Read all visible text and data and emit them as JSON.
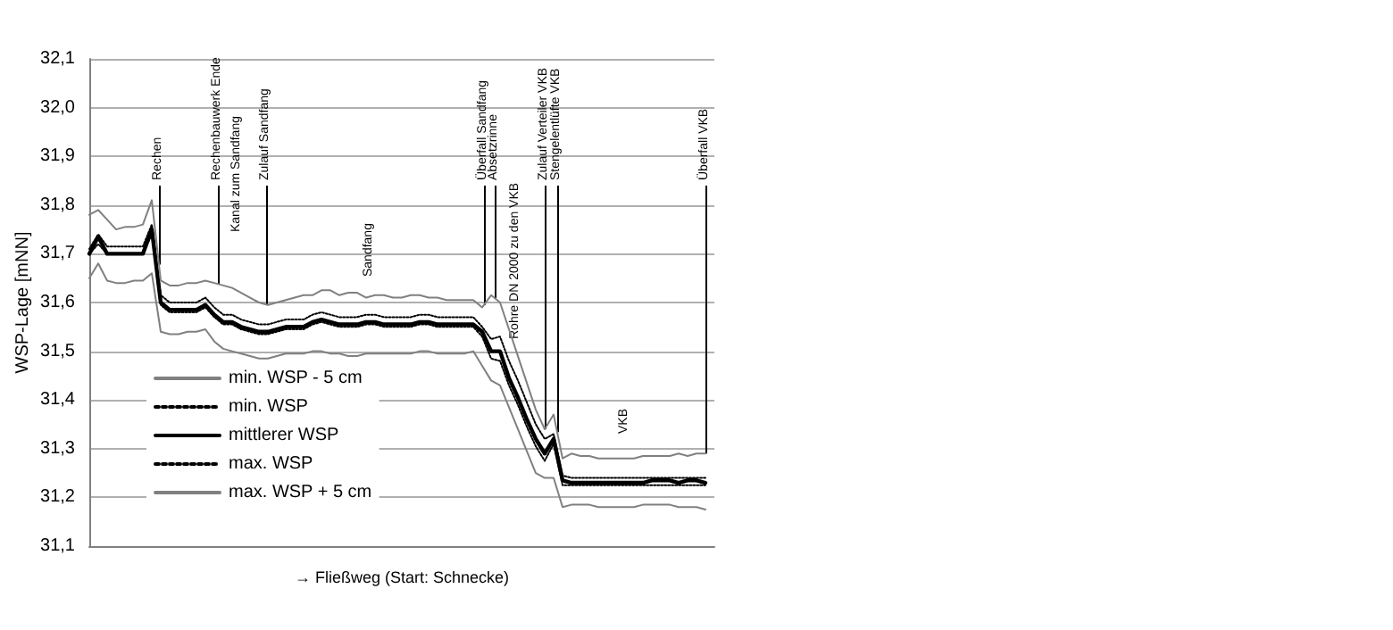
{
  "chart_data": {
    "type": "line",
    "ylabel": "WSP-Lage [mNN]",
    "xlabel": "→ Fließweg (Start: Schnecke)",
    "categories": [
      null,
      null,
      null,
      null,
      null,
      null,
      null,
      null,
      null,
      null,
      null,
      null,
      null,
      null,
      null,
      null,
      null,
      null,
      null,
      null,
      null,
      null,
      null,
      null,
      null,
      null,
      null,
      null,
      null,
      null,
      null,
      null,
      null,
      null,
      null,
      null,
      null,
      null,
      null,
      null,
      null,
      null,
      null,
      null,
      null,
      null,
      null,
      null,
      null,
      null,
      null,
      null,
      null,
      null,
      null,
      null,
      null,
      null,
      null,
      null,
      null,
      null,
      null,
      null,
      null,
      null,
      null,
      null,
      null,
      null,
      null
    ],
    "ylim": [
      31.1,
      32.1
    ],
    "yticks": [
      {
        "value": 31.1,
        "label": "31,1"
      },
      {
        "value": 31.2,
        "label": "31,2"
      },
      {
        "value": 31.3,
        "label": "31,3"
      },
      {
        "value": 31.4,
        "label": "31,4"
      },
      {
        "value": 31.5,
        "label": "31,5"
      },
      {
        "value": 31.6,
        "label": "31,6"
      },
      {
        "value": 31.7,
        "label": "31,7"
      },
      {
        "value": 31.8,
        "label": "31,8"
      },
      {
        "value": 31.9,
        "label": "31,9"
      },
      {
        "value": 32.0,
        "label": "32,0"
      },
      {
        "value": 32.1,
        "label": "32,1"
      }
    ],
    "grid": "y",
    "legend": "bottom left",
    "marker": "none",
    "series": [
      {
        "name": "min. WSP - 5 cm",
        "color": "#808080",
        "line_style": "solid",
        "values": [
          31.65,
          31.68,
          31.645,
          31.64,
          31.64,
          31.645,
          31.645,
          31.66,
          31.54,
          31.535,
          31.535,
          31.54,
          31.54,
          31.545,
          31.52,
          31.505,
          31.5,
          31.495,
          31.49,
          31.485,
          31.485,
          31.49,
          31.495,
          31.495,
          31.495,
          31.5,
          31.5,
          31.495,
          31.495,
          31.49,
          31.49,
          31.495,
          31.495,
          31.495,
          31.495,
          31.495,
          31.495,
          31.5,
          31.5,
          31.495,
          31.495,
          31.495,
          31.495,
          31.5,
          31.47,
          31.44,
          31.43,
          31.385,
          31.34,
          31.295,
          31.25,
          31.24,
          31.24,
          31.18,
          31.185,
          31.185,
          31.185,
          31.18,
          31.18,
          31.18,
          31.18,
          31.18,
          31.185,
          31.185,
          31.185,
          31.185,
          31.18,
          31.18,
          31.18,
          31.175,
          null
        ]
      },
      {
        "name": "min. WSP",
        "color": "#000000",
        "line_style": "dotted",
        "values": [
          31.7,
          31.72,
          31.7,
          31.7,
          31.7,
          31.7,
          31.7,
          31.74,
          31.595,
          31.58,
          31.58,
          31.58,
          31.58,
          31.59,
          31.57,
          31.555,
          31.555,
          31.545,
          31.54,
          31.535,
          31.535,
          31.54,
          31.545,
          31.545,
          31.545,
          31.555,
          31.56,
          31.555,
          31.55,
          31.55,
          31.55,
          31.555,
          31.555,
          31.55,
          31.55,
          31.55,
          31.55,
          31.555,
          31.555,
          31.55,
          31.55,
          31.55,
          31.55,
          31.55,
          31.53,
          31.485,
          31.48,
          31.43,
          31.39,
          31.345,
          31.305,
          31.275,
          31.31,
          31.225,
          31.225,
          31.225,
          31.225,
          31.225,
          31.225,
          31.225,
          31.225,
          31.225,
          31.225,
          31.225,
          31.225,
          31.225,
          31.225,
          31.225,
          31.225,
          31.225,
          null
        ]
      },
      {
        "name": "mittlerer WSP",
        "color": "#000000",
        "line_style": "solid",
        "values": [
          31.7,
          31.735,
          31.7,
          31.7,
          31.7,
          31.7,
          31.7,
          31.75,
          31.6,
          31.585,
          31.585,
          31.585,
          31.585,
          31.595,
          31.575,
          31.56,
          31.56,
          31.55,
          31.545,
          31.54,
          31.54,
          31.545,
          31.55,
          31.55,
          31.55,
          31.56,
          31.565,
          31.56,
          31.555,
          31.555,
          31.555,
          31.56,
          31.56,
          31.555,
          31.555,
          31.555,
          31.555,
          31.56,
          31.56,
          31.555,
          31.555,
          31.555,
          31.555,
          31.555,
          31.54,
          31.5,
          31.5,
          31.445,
          31.405,
          31.36,
          31.32,
          31.29,
          31.32,
          31.235,
          31.23,
          31.23,
          31.23,
          31.23,
          31.23,
          31.23,
          31.23,
          31.23,
          31.23,
          31.235,
          31.235,
          31.235,
          31.23,
          31.235,
          31.235,
          31.23,
          null
        ]
      },
      {
        "name": "max. WSP",
        "color": "#000000",
        "line_style": "dotted",
        "values": [
          31.71,
          31.74,
          31.715,
          31.715,
          31.715,
          31.715,
          31.715,
          31.76,
          31.615,
          31.6,
          31.6,
          31.6,
          31.6,
          31.61,
          31.59,
          31.575,
          31.575,
          31.565,
          31.56,
          31.555,
          31.555,
          31.56,
          31.565,
          31.565,
          31.565,
          31.575,
          31.58,
          31.575,
          31.57,
          31.57,
          31.57,
          31.575,
          31.575,
          31.57,
          31.57,
          31.57,
          31.57,
          31.575,
          31.575,
          31.57,
          31.57,
          31.57,
          31.57,
          31.57,
          31.55,
          31.525,
          31.53,
          31.48,
          31.44,
          31.395,
          31.35,
          31.32,
          31.33,
          31.245,
          31.24,
          31.24,
          31.24,
          31.24,
          31.24,
          31.24,
          31.24,
          31.24,
          31.24,
          31.24,
          31.24,
          31.24,
          31.24,
          31.24,
          31.24,
          31.24,
          null
        ]
      },
      {
        "name": "max. WSP + 5 cm",
        "color": "#808080",
        "line_style": "solid",
        "values": [
          31.78,
          31.79,
          31.77,
          31.75,
          31.755,
          31.755,
          31.76,
          31.81,
          31.645,
          31.635,
          31.635,
          31.64,
          31.64,
          31.645,
          31.64,
          31.635,
          31.63,
          31.62,
          31.61,
          31.6,
          31.595,
          31.6,
          31.605,
          31.61,
          31.615,
          31.615,
          31.625,
          31.625,
          31.615,
          31.62,
          31.62,
          31.61,
          31.615,
          31.615,
          31.61,
          31.61,
          31.615,
          31.615,
          31.61,
          31.61,
          31.605,
          31.605,
          31.605,
          31.605,
          31.59,
          31.615,
          31.6,
          31.545,
          31.49,
          31.435,
          31.38,
          31.34,
          31.37,
          31.28,
          31.29,
          31.285,
          31.285,
          31.28,
          31.28,
          31.28,
          31.28,
          31.28,
          31.285,
          31.285,
          31.285,
          31.285,
          31.29,
          31.285,
          31.29,
          31.29,
          null
        ]
      }
    ],
    "annotations": [
      "Rechen",
      "Rechenbauwerk Ende",
      "Kanal zum Sandfang",
      "Zulauf Sandfang",
      "Sandfang",
      "Überfall Sandfang",
      "Absetzrinne",
      "Rohre DN 2000 zu den VKB",
      "Zulauf Verteiler VKB",
      "Stengelentlüfte VKB",
      "VKB",
      "Überfall VKB"
    ]
  }
}
